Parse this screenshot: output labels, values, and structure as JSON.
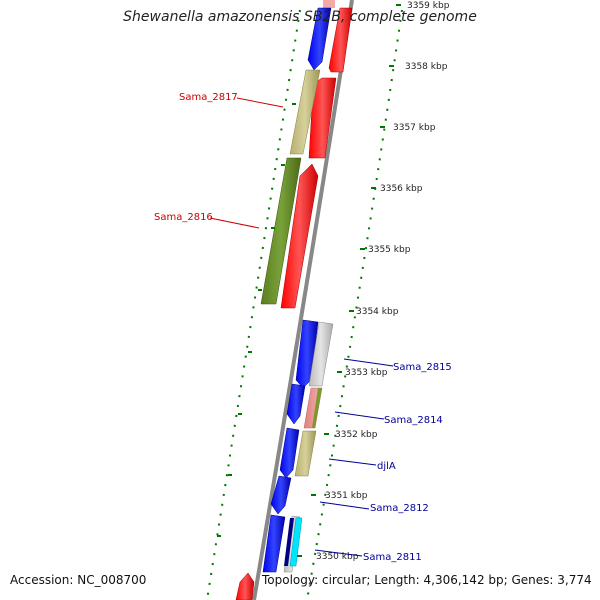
{
  "title": "Shewanella amazonensis SB2B, complete genome",
  "footer": {
    "accession": "Accession: NC_008700",
    "topology": "Topology: circular; Length: 4,306,142 bp; Genes: 3,774"
  },
  "colors": {
    "forward_cds": "#ff0000",
    "reverse_cds": "#0000ff",
    "tick": "#007700",
    "backbone": "#888888",
    "label_forward": "#cc0000",
    "label_reverse": "#000099"
  },
  "ticks": [
    {
      "label": "3359 kbp"
    },
    {
      "label": "3358 kbp"
    },
    {
      "label": "3357 kbp"
    },
    {
      "label": "3356 kbp"
    },
    {
      "label": "3355 kbp"
    },
    {
      "label": "3354 kbp"
    },
    {
      "label": "3353 kbp"
    },
    {
      "label": "3352 kbp"
    },
    {
      "label": "3351 kbp"
    },
    {
      "label": "3350 kbp"
    }
  ],
  "gene_labels": [
    {
      "name": "Sama_2817"
    },
    {
      "name": "Sama_2816"
    },
    {
      "name": "Sama_2815"
    },
    {
      "name": "Sama_2814"
    },
    {
      "name": "djlA"
    },
    {
      "name": "Sama_2812"
    },
    {
      "name": "Sama_2811"
    }
  ]
}
